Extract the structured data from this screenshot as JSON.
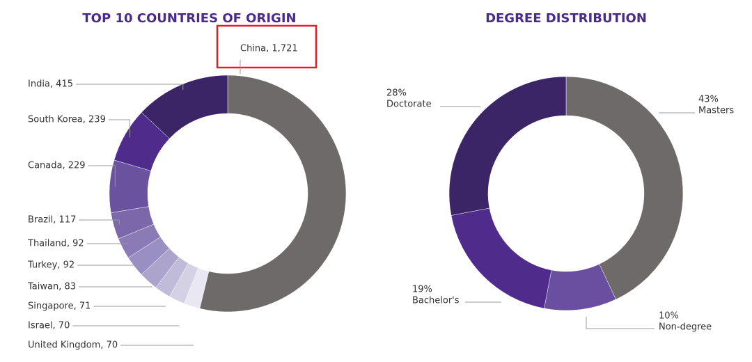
{
  "chart_data": [
    {
      "type": "donut",
      "title": "TOP 10 COUNTRIES OF ORIGIN",
      "categories": [
        "China, 1,721",
        "India, 415",
        "South Korea, 239",
        "Canada, 229",
        "Brazil, 117",
        "Thailand, 92",
        "Turkey, 92",
        "Taiwan, 83",
        "Singapore, 71",
        "Israel, 70",
        "United Kingdom, 70"
      ],
      "values": [
        1721,
        415,
        239,
        229,
        117,
        92,
        92,
        83,
        71,
        70,
        70
      ],
      "colors": [
        "#6f6a6a",
        "#3b2566",
        "#4f2b8b",
        "#6b529f",
        "#7b67aa",
        "#8a7bb6",
        "#9a8fc2",
        "#aca4cd",
        "#c0bbd9",
        "#d5d1e5",
        "#e9e7f1"
      ]
    },
    {
      "type": "donut",
      "title": "DEGREE DISTRIBUTION",
      "categories": [
        "Masters",
        "Non-degree",
        "Bachelor's",
        "Doctorate"
      ],
      "values": [
        43,
        10,
        19,
        28
      ],
      "value_labels": [
        "43%",
        "10%",
        "19%",
        "28%"
      ],
      "colors": [
        "#6f6a6a",
        "#6a4fa0",
        "#4f2b8b",
        "#3b2566"
      ]
    }
  ]
}
